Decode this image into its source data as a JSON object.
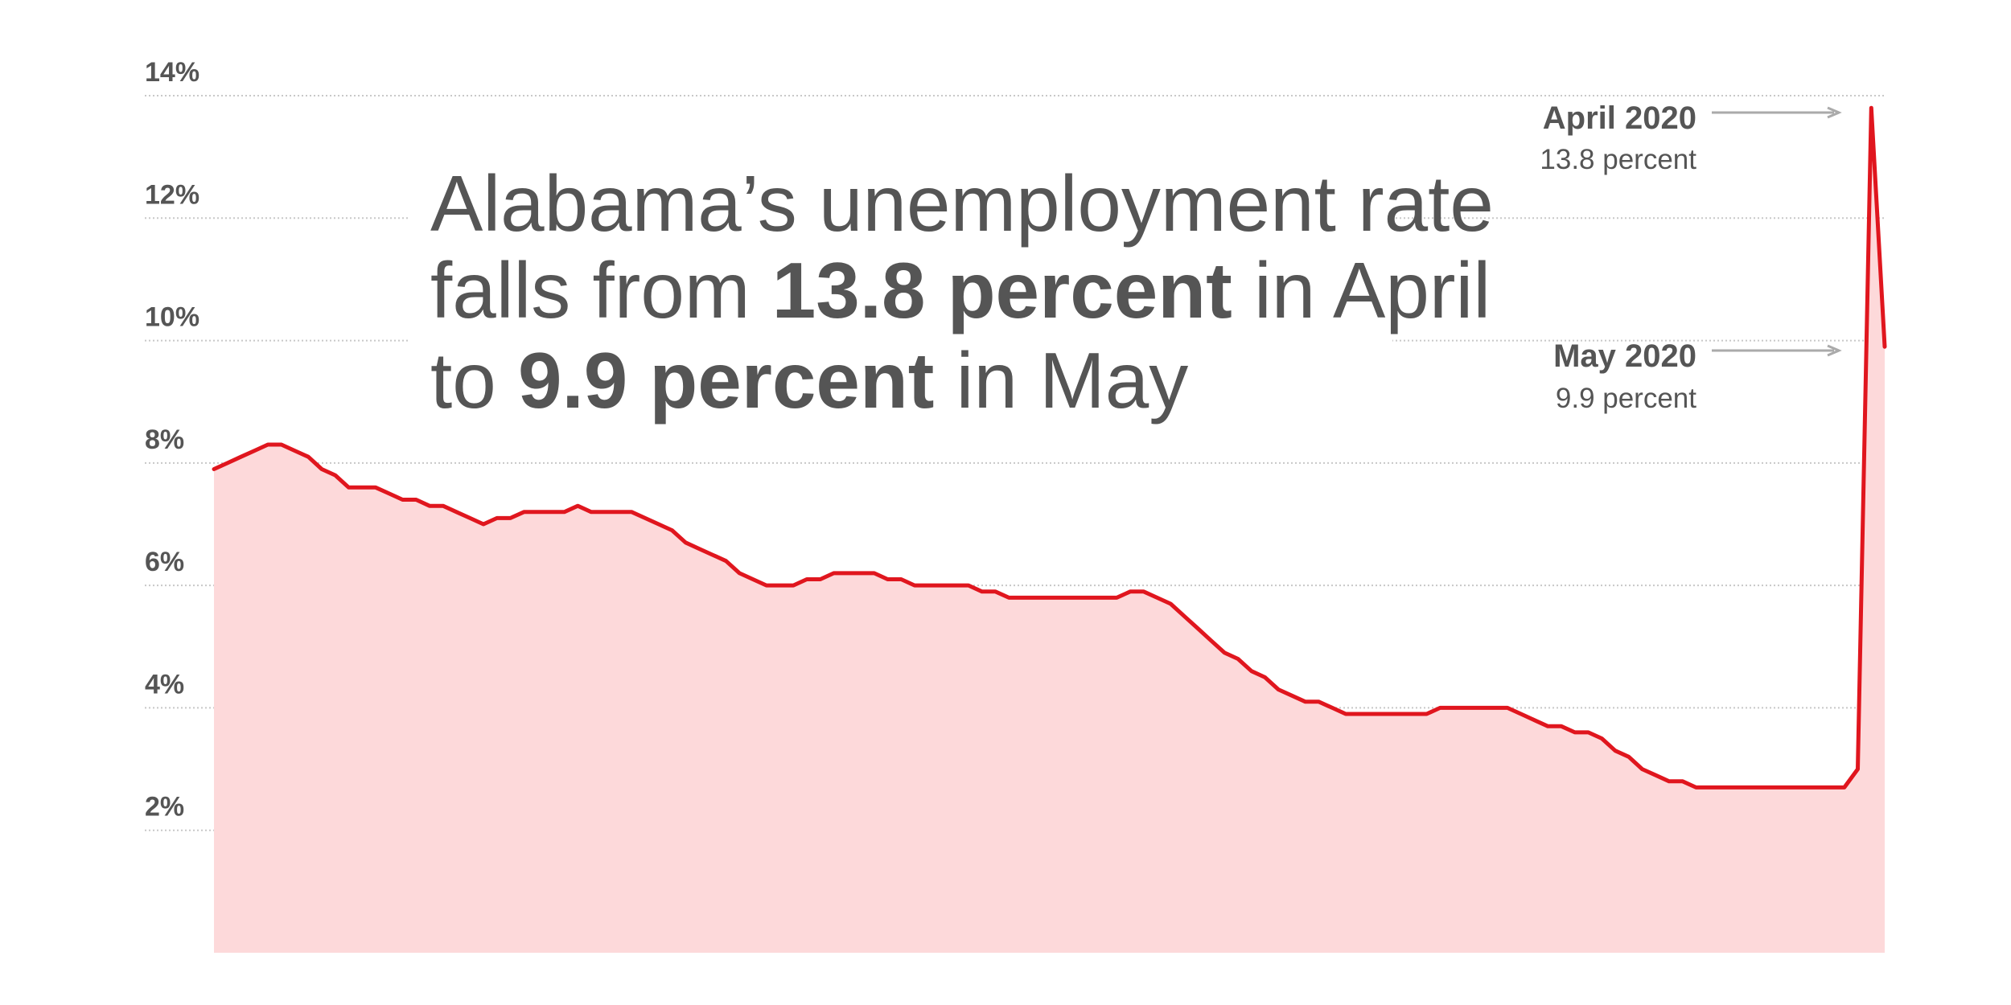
{
  "chart_data": {
    "type": "area",
    "title_lines": [
      [
        {
          "text": "Alabama’s unemployment rate",
          "bold": false
        }
      ],
      [
        {
          "text": "falls from ",
          "bold": false
        },
        {
          "text": "13.8 percent",
          "bold": true
        },
        {
          "text": " in April",
          "bold": false
        }
      ],
      [
        {
          "text": "to ",
          "bold": false
        },
        {
          "text": "9.9 percent",
          "bold": true
        },
        {
          "text": " in May",
          "bold": false
        }
      ]
    ],
    "values": [
      7.9,
      8.0,
      8.1,
      8.2,
      8.3,
      8.3,
      8.2,
      8.1,
      7.9,
      7.8,
      7.6,
      7.6,
      7.6,
      7.5,
      7.4,
      7.4,
      7.3,
      7.3,
      7.2,
      7.1,
      7.0,
      7.1,
      7.1,
      7.2,
      7.2,
      7.2,
      7.2,
      7.3,
      7.2,
      7.2,
      7.2,
      7.2,
      7.1,
      7.0,
      6.9,
      6.7,
      6.6,
      6.5,
      6.4,
      6.2,
      6.1,
      6.0,
      6.0,
      6.0,
      6.1,
      6.1,
      6.2,
      6.2,
      6.2,
      6.2,
      6.1,
      6.1,
      6.0,
      6.0,
      6.0,
      6.0,
      6.0,
      5.9,
      5.9,
      5.8,
      5.8,
      5.8,
      5.8,
      5.8,
      5.8,
      5.8,
      5.8,
      5.8,
      5.9,
      5.9,
      5.8,
      5.7,
      5.5,
      5.3,
      5.1,
      4.9,
      4.8,
      4.6,
      4.5,
      4.3,
      4.2,
      4.1,
      4.1,
      4.0,
      3.9,
      3.9,
      3.9,
      3.9,
      3.9,
      3.9,
      3.9,
      4.0,
      4.0,
      4.0,
      4.0,
      4.0,
      4.0,
      3.9,
      3.8,
      3.7,
      3.7,
      3.6,
      3.6,
      3.5,
      3.3,
      3.2,
      3.0,
      2.9,
      2.8,
      2.8,
      2.7,
      2.7,
      2.7,
      2.7,
      2.7,
      2.7,
      2.7,
      2.7,
      2.7,
      2.7,
      2.7,
      2.7,
      3.0,
      13.8,
      9.9
    ],
    "color": "#e0161e",
    "fill_color": "#fdd9da",
    "ylim": [
      0,
      14
    ],
    "yticks": [
      {
        "value": 2,
        "label": "2%"
      },
      {
        "value": 4,
        "label": "4%"
      },
      {
        "value": 6,
        "label": "6%"
      },
      {
        "value": 8,
        "label": "8%"
      },
      {
        "value": 10,
        "label": "10%"
      },
      {
        "value": 12,
        "label": "12%"
      },
      {
        "value": 14,
        "label": "14%"
      }
    ],
    "grid": true,
    "annotations": [
      {
        "label": "April 2020",
        "text": "13.8 percent"
      },
      {
        "label": "May 2020",
        "text": "9.9 percent"
      }
    ]
  }
}
